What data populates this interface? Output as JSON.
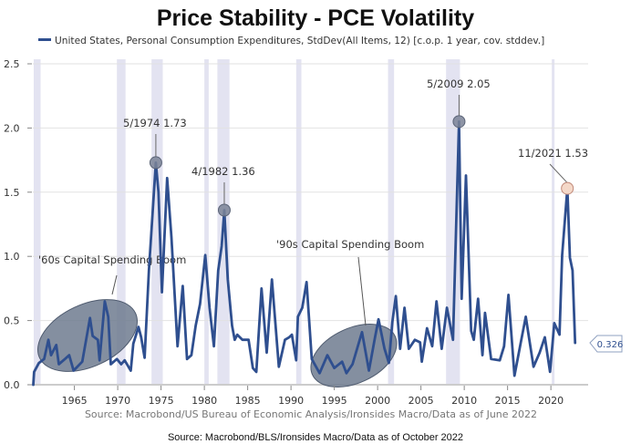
{
  "chart_data": {
    "type": "line",
    "title": "Price Stability - PCE Volatility",
    "legend": {
      "label": "United States, Personal Consumption Expenditures, StdDev(All Items, 12) [c.o.p. 1 year, cov. stddev.]",
      "placement": "top-center"
    },
    "xlabel": "",
    "ylabel": "",
    "xlim": [
      1960.2,
      2024.3
    ],
    "ylim": [
      0,
      2.5
    ],
    "xticks": [
      1965,
      1970,
      1975,
      1980,
      1985,
      1990,
      1995,
      2000,
      2005,
      2010,
      2015,
      2020
    ],
    "yticks": [
      "0.0",
      "0.5",
      "1.0",
      "1.5",
      "2.0",
      "2.5"
    ],
    "grid": true,
    "colors": {
      "line": "#2f4f8f",
      "recession": "#e3e3f1",
      "marker": "#7a8396",
      "marker_last": "#f4d8c8",
      "ellipse": "#6f7b8f"
    },
    "recessions": [
      [
        1960.3,
        1961.1
      ],
      [
        1969.9,
        1970.9
      ],
      [
        1973.9,
        1975.2
      ],
      [
        1980.0,
        1980.5
      ],
      [
        1981.5,
        1982.9
      ],
      [
        1990.6,
        1991.2
      ],
      [
        2001.2,
        2001.9
      ],
      [
        2007.9,
        2009.5
      ],
      [
        2020.1,
        2020.4
      ]
    ],
    "series": [
      {
        "name": "United States, Personal Consumption Expenditures, StdDev(All Items, 12)",
        "points": [
          [
            1960.25,
            0.0
          ],
          [
            1960.35,
            0.1
          ],
          [
            1960.9,
            0.17
          ],
          [
            1961.5,
            0.2
          ],
          [
            1962.0,
            0.35
          ],
          [
            1962.3,
            0.23
          ],
          [
            1962.9,
            0.31
          ],
          [
            1963.2,
            0.16
          ],
          [
            1963.9,
            0.2
          ],
          [
            1964.4,
            0.23
          ],
          [
            1964.9,
            0.11
          ],
          [
            1965.9,
            0.18
          ],
          [
            1966.8,
            0.52
          ],
          [
            1967.1,
            0.38
          ],
          [
            1967.7,
            0.35
          ],
          [
            1967.9,
            0.19
          ],
          [
            1968.5,
            0.65
          ],
          [
            1968.9,
            0.53
          ],
          [
            1969.2,
            0.16
          ],
          [
            1969.9,
            0.2
          ],
          [
            1970.4,
            0.16
          ],
          [
            1970.8,
            0.19
          ],
          [
            1971.5,
            0.11
          ],
          [
            1971.8,
            0.32
          ],
          [
            1972.4,
            0.45
          ],
          [
            1972.7,
            0.37
          ],
          [
            1973.1,
            0.21
          ],
          [
            1973.6,
            0.89
          ],
          [
            1974.4,
            1.73
          ],
          [
            1974.7,
            1.5
          ],
          [
            1975.1,
            0.72
          ],
          [
            1975.7,
            1.61
          ],
          [
            1976.2,
            1.15
          ],
          [
            1976.9,
            0.3
          ],
          [
            1977.5,
            0.77
          ],
          [
            1978.0,
            0.2
          ],
          [
            1978.5,
            0.23
          ],
          [
            1979.0,
            0.46
          ],
          [
            1979.5,
            0.63
          ],
          [
            1980.1,
            1.01
          ],
          [
            1980.6,
            0.6
          ],
          [
            1981.1,
            0.3
          ],
          [
            1981.6,
            0.89
          ],
          [
            1982.0,
            1.08
          ],
          [
            1982.3,
            1.36
          ],
          [
            1982.7,
            0.82
          ],
          [
            1983.2,
            0.46
          ],
          [
            1983.5,
            0.35
          ],
          [
            1983.8,
            0.39
          ],
          [
            1984.4,
            0.35
          ],
          [
            1985.1,
            0.35
          ],
          [
            1985.6,
            0.13
          ],
          [
            1986.0,
            0.1
          ],
          [
            1986.6,
            0.75
          ],
          [
            1987.2,
            0.25
          ],
          [
            1987.8,
            0.82
          ],
          [
            1988.6,
            0.14
          ],
          [
            1989.3,
            0.35
          ],
          [
            1989.8,
            0.37
          ],
          [
            1990.1,
            0.39
          ],
          [
            1990.6,
            0.19
          ],
          [
            1990.8,
            0.53
          ],
          [
            1991.3,
            0.6
          ],
          [
            1991.8,
            0.8
          ],
          [
            1992.4,
            0.2
          ],
          [
            1993.3,
            0.09
          ],
          [
            1994.2,
            0.23
          ],
          [
            1995.0,
            0.13
          ],
          [
            1995.9,
            0.18
          ],
          [
            1996.4,
            0.09
          ],
          [
            1997.1,
            0.16
          ],
          [
            1998.2,
            0.41
          ],
          [
            1999.0,
            0.11
          ],
          [
            1999.7,
            0.37
          ],
          [
            2000.1,
            0.51
          ],
          [
            2000.8,
            0.28
          ],
          [
            2001.3,
            0.17
          ],
          [
            2001.7,
            0.49
          ],
          [
            2002.1,
            0.69
          ],
          [
            2002.6,
            0.28
          ],
          [
            2003.1,
            0.6
          ],
          [
            2003.6,
            0.28
          ],
          [
            2004.3,
            0.35
          ],
          [
            2004.9,
            0.33
          ],
          [
            2005.1,
            0.18
          ],
          [
            2005.7,
            0.44
          ],
          [
            2006.3,
            0.3
          ],
          [
            2006.8,
            0.65
          ],
          [
            2007.4,
            0.28
          ],
          [
            2008.0,
            0.6
          ],
          [
            2008.7,
            0.35
          ],
          [
            2009.4,
            2.05
          ],
          [
            2009.7,
            0.67
          ],
          [
            2010.2,
            1.63
          ],
          [
            2010.8,
            0.42
          ],
          [
            2011.1,
            0.35
          ],
          [
            2011.6,
            0.67
          ],
          [
            2012.1,
            0.23
          ],
          [
            2012.4,
            0.56
          ],
          [
            2013.1,
            0.2
          ],
          [
            2014.1,
            0.19
          ],
          [
            2014.6,
            0.3
          ],
          [
            2015.1,
            0.7
          ],
          [
            2015.8,
            0.07
          ],
          [
            2016.5,
            0.32
          ],
          [
            2017.1,
            0.53
          ],
          [
            2018.0,
            0.14
          ],
          [
            2018.7,
            0.25
          ],
          [
            2019.3,
            0.37
          ],
          [
            2019.9,
            0.1
          ],
          [
            2020.4,
            0.48
          ],
          [
            2021.0,
            0.39
          ],
          [
            2021.3,
            1.01
          ],
          [
            2021.9,
            1.53
          ],
          [
            2022.2,
            0.99
          ],
          [
            2022.5,
            0.89
          ],
          [
            2022.8,
            0.326
          ]
        ]
      }
    ],
    "annotations": [
      {
        "label": "5/1974 1.73",
        "x": 1974.4,
        "y": 1.73
      },
      {
        "label": "4/1982 1.36",
        "x": 1982.3,
        "y": 1.36
      },
      {
        "label": "5/2009 2.05",
        "x": 2009.4,
        "y": 2.05
      },
      {
        "label": "11/2021 1.53",
        "x": 2021.9,
        "y": 1.53
      }
    ],
    "callouts": [
      {
        "label": "'60s Capital Spending Boom",
        "x_range": [
          1960.5,
          1972
        ],
        "y_range": [
          0.07,
          0.7
        ]
      },
      {
        "label": "'90s Capital Spending Boom",
        "x_range": [
          1992.5,
          2002.5
        ],
        "y_range": [
          0.0,
          0.46
        ]
      }
    ],
    "last_value_label": "0.326",
    "source_inner": "Source: Macrobond/US Bureau of Economic Analysis/Ironsides Macro/Data as of June 2022",
    "source_outer": "Source: Macrobond/BLS/Ironsides Macro/Data as of October 2022"
  }
}
